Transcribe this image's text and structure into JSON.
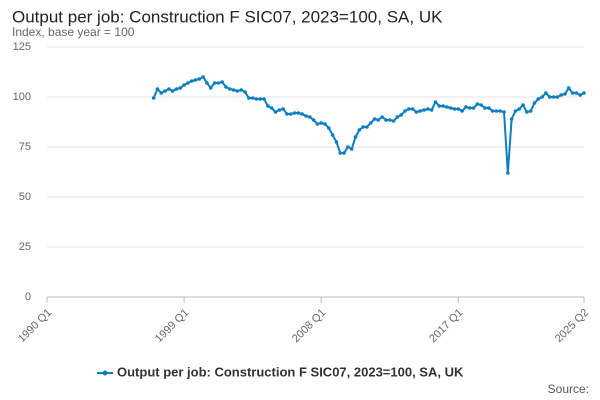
{
  "chart_data": {
    "type": "line",
    "title": "Output per job: Construction F SIC07, 2023=100, SA, UK",
    "y_label": "Index, base year = 100",
    "source": "Source:",
    "categories": [
      "1990 Q1",
      null,
      null,
      null,
      null,
      null,
      null,
      null,
      null,
      null,
      null,
      null,
      null,
      null,
      null,
      null,
      null,
      null,
      null,
      null,
      null,
      null,
      null,
      null,
      null,
      null,
      null,
      null,
      null,
      null,
      null,
      null,
      null,
      null,
      null,
      null,
      "1999 Q1",
      null,
      null,
      null,
      null,
      null,
      null,
      null,
      null,
      null,
      null,
      null,
      null,
      null,
      null,
      null,
      null,
      null,
      null,
      null,
      null,
      null,
      null,
      null,
      null,
      null,
      null,
      null,
      null,
      null,
      null,
      null,
      null,
      null,
      null,
      null,
      "2008 Q1",
      null,
      null,
      null,
      null,
      null,
      null,
      null,
      null,
      null,
      null,
      null,
      null,
      null,
      null,
      null,
      null,
      null,
      null,
      null,
      null,
      null,
      null,
      null,
      null,
      null,
      null,
      null,
      null,
      null,
      null,
      null,
      null,
      null,
      null,
      null,
      "2017 Q1",
      null,
      null,
      null,
      null,
      null,
      null,
      null,
      null,
      null,
      null,
      null,
      null,
      null,
      null,
      null,
      null,
      null,
      null,
      null,
      null,
      null,
      null,
      null,
      null,
      null,
      null,
      null,
      null,
      null,
      null,
      null,
      null,
      "2025 Q2"
    ],
    "series": [
      {
        "name": "Output per job: Construction F SIC07, 2023=100, SA, UK",
        "color": "#0b7fbf",
        "values": [
          null,
          null,
          null,
          null,
          null,
          null,
          null,
          null,
          null,
          null,
          null,
          null,
          null,
          null,
          null,
          null,
          null,
          null,
          null,
          null,
          null,
          null,
          null,
          null,
          null,
          null,
          null,
          null,
          99.5,
          104,
          102,
          103,
          104,
          103,
          104,
          104.5,
          106,
          107,
          108,
          108.5,
          109,
          110,
          107,
          104.5,
          107,
          107,
          107.5,
          105,
          104,
          103.5,
          103,
          103.5,
          102.5,
          99.5,
          99.5,
          99,
          99,
          99,
          95.5,
          94.5,
          92.5,
          93.5,
          94,
          91.5,
          91.5,
          92,
          92,
          91.5,
          90.5,
          90,
          88.5,
          86.5,
          87,
          86.5,
          84.5,
          81,
          77.5,
          72,
          72,
          75,
          74,
          80,
          83.5,
          85,
          85,
          87,
          89,
          88.5,
          90,
          88.5,
          88.5,
          88,
          90,
          91,
          93,
          94,
          94,
          92.5,
          93,
          93.5,
          94,
          93.5,
          97.5,
          95.5,
          95.5,
          95,
          94.5,
          94,
          94,
          93,
          95,
          94.5,
          94.5,
          96.5,
          96,
          94.5,
          94.5,
          93,
          93,
          93,
          92.5,
          62,
          89,
          93,
          94,
          96,
          92.5,
          93,
          97,
          99,
          100,
          102,
          100,
          100,
          100,
          101,
          101.5,
          104.5,
          102,
          102,
          101,
          102
        ]
      }
    ],
    "ylim": [
      0,
      125
    ],
    "yticks": [
      0,
      25,
      50,
      75,
      100,
      125
    ],
    "grid": true
  }
}
